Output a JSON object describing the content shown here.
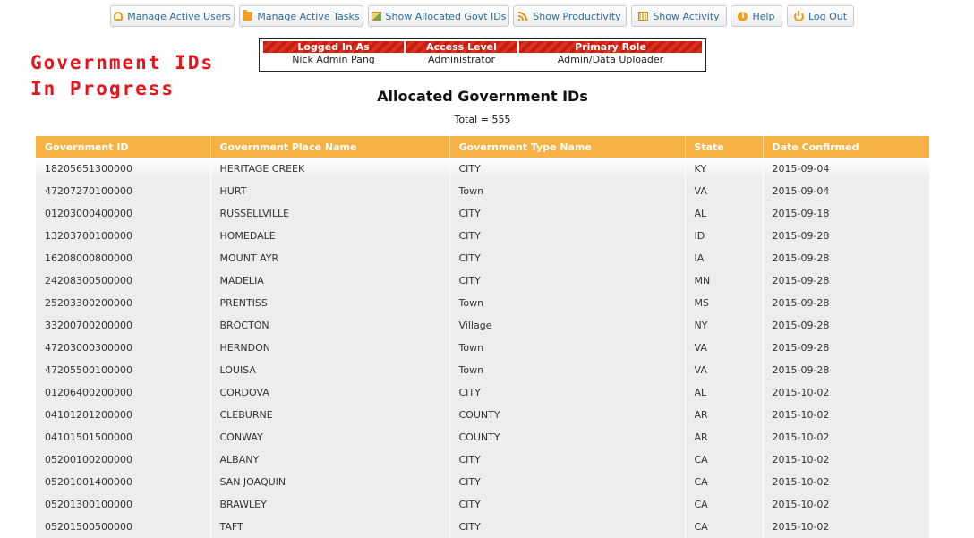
{
  "nav": {
    "buttons": [
      {
        "label": "Manage Active Users",
        "icon": "user-icon"
      },
      {
        "label": "Manage Active Tasks",
        "icon": "folder-icon"
      },
      {
        "label": "Show Allocated Govt IDs",
        "icon": "image-icon"
      },
      {
        "label": "Show Productivity",
        "icon": "rss-icon"
      },
      {
        "label": "Show Activity",
        "icon": "calendar-icon"
      },
      {
        "label": "Help",
        "icon": "info-icon"
      },
      {
        "label": "Log Out",
        "icon": "power-icon"
      }
    ]
  },
  "page_title": {
    "line1": "Government IDs",
    "line2": "In Progress",
    "color": "#e8141c"
  },
  "user_info": {
    "headers": [
      "Logged In As",
      "Access Level",
      "Primary Role"
    ],
    "values": [
      "Nick Admin Pang",
      "Administrator",
      "Admin/Data Uploader"
    ]
  },
  "section": {
    "title": "Allocated Government IDs",
    "total": "Total = 555"
  },
  "table": {
    "header_color": "#f6b244",
    "columns": [
      "Government ID",
      "Government Place Name",
      "Government Type Name",
      "State",
      "Date Confirmed"
    ],
    "rows": [
      [
        "18205651300000",
        "HERITAGE CREEK",
        "CITY",
        "KY",
        "2015-09-04"
      ],
      [
        "47207270100000",
        "HURT",
        "Town",
        "VA",
        "2015-09-04"
      ],
      [
        "01203000400000",
        "RUSSELLVILLE",
        "CITY",
        "AL",
        "2015-09-18"
      ],
      [
        "13203700100000",
        "HOMEDALE",
        "CITY",
        "ID",
        "2015-09-28"
      ],
      [
        "16208000800000",
        "MOUNT AYR",
        "CITY",
        "IA",
        "2015-09-28"
      ],
      [
        "24208300500000",
        "MADELIA",
        "CITY",
        "MN",
        "2015-09-28"
      ],
      [
        "25203300200000",
        "PRENTISS",
        "Town",
        "MS",
        "2015-09-28"
      ],
      [
        "33200700200000",
        "BROCTON",
        "Village",
        "NY",
        "2015-09-28"
      ],
      [
        "47203000300000",
        "HERNDON",
        "Town",
        "VA",
        "2015-09-28"
      ],
      [
        "47205500100000",
        "LOUISA",
        "Town",
        "VA",
        "2015-09-28"
      ],
      [
        "01206400200000",
        "CORDOVA",
        "CITY",
        "AL",
        "2015-10-02"
      ],
      [
        "04101201200000",
        "CLEBURNE",
        "COUNTY",
        "AR",
        "2015-10-02"
      ],
      [
        "04101501500000",
        "CONWAY",
        "COUNTY",
        "AR",
        "2015-10-02"
      ],
      [
        "05200100200000",
        "ALBANY",
        "CITY",
        "CA",
        "2015-10-02"
      ],
      [
        "05201001400000",
        "SAN JOAQUIN",
        "CITY",
        "CA",
        "2015-10-02"
      ],
      [
        "05201300100000",
        "BRAWLEY",
        "CITY",
        "CA",
        "2015-10-02"
      ],
      [
        "05201500500000",
        "TAFT",
        "CITY",
        "CA",
        "2015-10-02"
      ]
    ]
  }
}
